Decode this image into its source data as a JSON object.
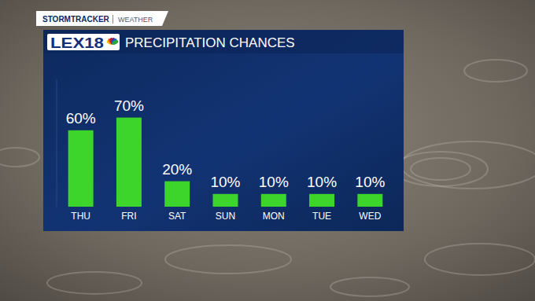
{
  "chart_data": {
    "type": "bar",
    "title": "PRECIPITATION CHANCES",
    "categories": [
      "THU",
      "FRI",
      "SAT",
      "SUN",
      "MON",
      "TUE",
      "WED"
    ],
    "values": [
      60,
      70,
      20,
      10,
      10,
      10,
      10
    ],
    "value_labels": [
      "60%",
      "70%",
      "20%",
      "10%",
      "10%",
      "10%",
      "10%"
    ],
    "color": "#3dd52b",
    "ylim": [
      0,
      100
    ],
    "data_labels": true,
    "tick_labels": "x",
    "grid": false
  },
  "branding": {
    "tab": "STORMTRACKER",
    "section": "WEATHER",
    "logo": "LEX18"
  }
}
